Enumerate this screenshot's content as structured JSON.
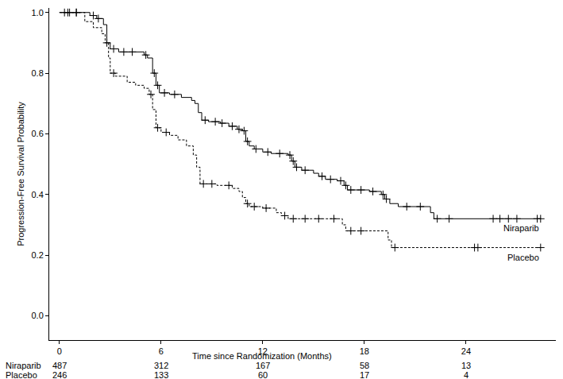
{
  "chart_data": {
    "type": "step",
    "x_label": "Time since Randomization (Months)",
    "y_label": "Progression-Free Survival Probability",
    "xlim": [
      -0.6,
      29.3
    ],
    "xticks": [
      0,
      6,
      12,
      18,
      24
    ],
    "ylim": [
      -0.08,
      1.015
    ],
    "yticks": [
      {
        "value": 0,
        "label": "0.0"
      },
      {
        "value": 0.2,
        "label": "0.2"
      },
      {
        "value": 0.4,
        "label": "0.4"
      },
      {
        "value": 0.6,
        "label": "0.6"
      },
      {
        "value": 0.8,
        "label": "0.8"
      },
      {
        "value": 1,
        "label": "1.0"
      }
    ],
    "grid": false,
    "marker": "cross",
    "series": [
      {
        "name": "Niraparib",
        "color": "#000000",
        "line_style": "solid",
        "x": [
          0,
          1.8,
          2.2,
          2.6,
          2.8,
          3.0,
          3.5,
          5.0,
          5.2,
          5.5,
          5.7,
          5.9,
          6.5,
          7.2,
          7.8,
          8.0,
          8.2,
          8.4,
          8.8,
          9.5,
          10.0,
          10.5,
          10.8,
          11.0,
          11.2,
          11.5,
          12.0,
          12.5,
          13.5,
          13.7,
          13.9,
          14.3,
          15.0,
          15.3,
          15.7,
          16.4,
          16.8,
          17.0,
          18.3,
          19.0,
          19.2,
          19.5,
          20.0,
          21.9,
          22.1,
          28.4
        ],
        "values": [
          1.0,
          0.99,
          0.98,
          0.96,
          0.9,
          0.88,
          0.87,
          0.86,
          0.85,
          0.8,
          0.76,
          0.735,
          0.73,
          0.72,
          0.71,
          0.7,
          0.67,
          0.645,
          0.64,
          0.635,
          0.625,
          0.615,
          0.61,
          0.575,
          0.56,
          0.55,
          0.54,
          0.535,
          0.53,
          0.51,
          0.49,
          0.48,
          0.47,
          0.46,
          0.45,
          0.445,
          0.43,
          0.415,
          0.41,
          0.4,
          0.385,
          0.37,
          0.36,
          0.34,
          0.32,
          0.32
        ],
        "censored_x": [
          0.3,
          0.6,
          1.0,
          2.0,
          2.3,
          3.2,
          3.8,
          4.3,
          5.1,
          5.6,
          5.8,
          6.2,
          6.8,
          8.6,
          9.2,
          9.6,
          10.2,
          10.6,
          10.9,
          11.1,
          11.6,
          12.3,
          13.0,
          13.6,
          13.8,
          14.0,
          14.5,
          15.5,
          16.0,
          16.6,
          16.9,
          17.2,
          17.8,
          18.5,
          19.1,
          19.3,
          20.5,
          21.3,
          22.3,
          23.0,
          25.6,
          26.0,
          26.5,
          27.0,
          28.2,
          28.4
        ],
        "censored_values": [
          1.0,
          1.0,
          1.0,
          0.99,
          0.98,
          0.88,
          0.87,
          0.87,
          0.86,
          0.8,
          0.76,
          0.735,
          0.73,
          0.645,
          0.64,
          0.635,
          0.625,
          0.615,
          0.61,
          0.575,
          0.55,
          0.54,
          0.535,
          0.53,
          0.51,
          0.49,
          0.48,
          0.46,
          0.45,
          0.445,
          0.43,
          0.415,
          0.415,
          0.41,
          0.4,
          0.385,
          0.36,
          0.36,
          0.32,
          0.32,
          0.32,
          0.32,
          0.32,
          0.32,
          0.32,
          0.32
        ]
      },
      {
        "name": "Placebo",
        "color": "#000000",
        "line_style": "dashed",
        "x": [
          0,
          1.5,
          2.0,
          2.5,
          2.7,
          2.9,
          3.0,
          3.3,
          4.0,
          4.5,
          5.0,
          5.3,
          5.5,
          5.7,
          6.0,
          6.5,
          7.0,
          7.5,
          7.9,
          8.1,
          8.3,
          9.3,
          10.2,
          10.6,
          10.8,
          11.0,
          11.2,
          12.0,
          12.8,
          13.1,
          13.5,
          16.7,
          16.9,
          19.4,
          19.6,
          28.4
        ],
        "values": [
          1.0,
          0.97,
          0.95,
          0.93,
          0.9,
          0.85,
          0.8,
          0.79,
          0.77,
          0.76,
          0.75,
          0.73,
          0.68,
          0.62,
          0.605,
          0.595,
          0.58,
          0.56,
          0.53,
          0.49,
          0.435,
          0.43,
          0.42,
          0.41,
          0.39,
          0.37,
          0.36,
          0.355,
          0.34,
          0.33,
          0.32,
          0.3,
          0.28,
          0.25,
          0.225,
          0.225
        ],
        "censored_x": [
          0.5,
          1.0,
          2.8,
          3.2,
          5.4,
          5.8,
          6.3,
          8.5,
          9.0,
          10.0,
          11.1,
          11.5,
          12.2,
          13.3,
          13.8,
          14.5,
          15.3,
          16.2,
          17.2,
          17.8,
          19.8,
          24.5,
          24.7,
          28.4
        ],
        "censored_values": [
          1.0,
          1.0,
          0.9,
          0.8,
          0.73,
          0.62,
          0.605,
          0.435,
          0.435,
          0.43,
          0.37,
          0.36,
          0.355,
          0.33,
          0.32,
          0.32,
          0.32,
          0.32,
          0.28,
          0.28,
          0.225,
          0.225,
          0.225,
          0.225
        ]
      }
    ],
    "risk_table": {
      "x": [
        0,
        6,
        12,
        18,
        24
      ],
      "rows": [
        {
          "name": "Niraparib",
          "values": [
            487,
            312,
            167,
            58,
            13
          ]
        },
        {
          "name": "Placebo",
          "values": [
            246,
            133,
            60,
            17,
            4
          ]
        }
      ]
    }
  }
}
